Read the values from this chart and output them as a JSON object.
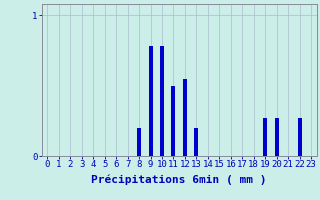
{
  "title": "",
  "xlabel": "Précipitations 6min ( mm )",
  "ylabel": "",
  "xlim": [
    -0.5,
    23.5
  ],
  "ylim": [
    0,
    1.08
  ],
  "yticks": [
    0,
    1
  ],
  "ytick_labels": [
    "0",
    "1"
  ],
  "xticks": [
    0,
    1,
    2,
    3,
    4,
    5,
    6,
    7,
    8,
    9,
    10,
    11,
    12,
    13,
    14,
    15,
    16,
    17,
    18,
    19,
    20,
    21,
    22,
    23
  ],
  "categories": [
    0,
    1,
    2,
    3,
    4,
    5,
    6,
    7,
    8,
    9,
    10,
    11,
    12,
    13,
    14,
    15,
    16,
    17,
    18,
    19,
    20,
    21,
    22,
    23
  ],
  "values": [
    0,
    0,
    0,
    0,
    0,
    0,
    0,
    0,
    0.2,
    0.78,
    0.78,
    0.5,
    0.55,
    0.2,
    0,
    0,
    0,
    0,
    0,
    0.27,
    0.27,
    0,
    0.27,
    0
  ],
  "bar_color": "#0000cc",
  "bg_color": "#cceee8",
  "grid_color": "#aabbcc",
  "axis_color": "#888899",
  "text_color": "#0000bb",
  "xlabel_fontsize": 8,
  "tick_fontsize": 6.5,
  "bar_width": 0.35
}
